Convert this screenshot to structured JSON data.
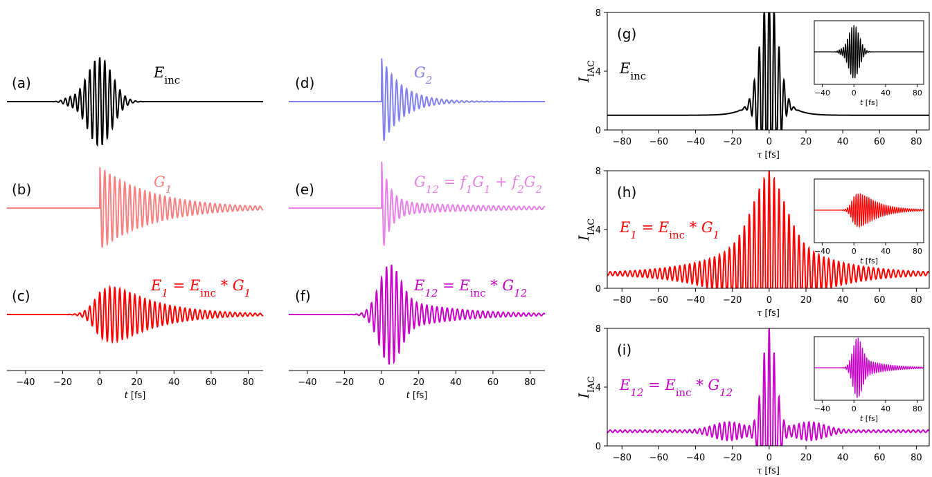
{
  "colors": {
    "black": "#000000",
    "salmon": "#f88080",
    "blue": "#8080f0",
    "violet": "#e880e8",
    "red": "#ff0000",
    "magenta": "#c800c8"
  },
  "chart_data": [
    {
      "type": "line",
      "group": "left",
      "xlabel": "t [fs]",
      "xticks": [
        -40,
        -20,
        0,
        20,
        40,
        60,
        80
      ],
      "xlim": [
        -50,
        88
      ],
      "y_axis_shown": false,
      "panels": [
        {
          "id": "a",
          "label": "(a)",
          "eq": "E_inc",
          "color": "#000000",
          "kind": "Einc"
        },
        {
          "id": "b",
          "label": "(b)",
          "eq": "G_1",
          "color": "#f88080",
          "kind": "G1"
        },
        {
          "id": "c",
          "label": "(c)",
          "eq": "E_1 = E_inc * G_1",
          "color": "#ff0000",
          "kind": "E1"
        }
      ]
    },
    {
      "type": "line",
      "group": "middle",
      "xlabel": "t [fs]",
      "xticks": [
        -40,
        -20,
        0,
        20,
        40,
        60,
        80
      ],
      "xlim": [
        -50,
        88
      ],
      "y_axis_shown": false,
      "panels": [
        {
          "id": "d",
          "label": "(d)",
          "eq": "G_2",
          "color": "#8080f0",
          "kind": "G2"
        },
        {
          "id": "e",
          "label": "(e)",
          "eq": "G_12 = f_1 G_1 + f_2 G_2",
          "color": "#e880e8",
          "kind": "G12"
        },
        {
          "id": "f",
          "label": "(f)",
          "eq": "E_12 = E_inc * G_12",
          "color": "#c800c8",
          "kind": "E12"
        }
      ]
    },
    {
      "type": "line",
      "id": "g",
      "label": "(g)",
      "eq": "E_inc",
      "color": "#000000",
      "kind": "IEinc",
      "ylabel": "I_IAC",
      "xlabel": "τ [fs]",
      "ylim": [
        0,
        8
      ],
      "yticks": [
        0,
        4,
        8
      ],
      "xlim": [
        -88,
        87
      ],
      "xticks": [
        -80,
        -60,
        -40,
        -20,
        0,
        20,
        40,
        60,
        80
      ],
      "inset": {
        "kind": "Einc",
        "xlabel": "t [fs]",
        "xticks": [
          -40,
          0,
          40,
          80
        ],
        "xlim": [
          -50,
          88
        ]
      }
    },
    {
      "type": "line",
      "id": "h",
      "label": "(h)",
      "eq": "E_1 = E_inc * G_1",
      "color": "#ff0000",
      "kind": "IE1",
      "ylabel": "I_IAC",
      "xlabel": "τ [fs]",
      "ylim": [
        0,
        8
      ],
      "yticks": [
        0,
        4,
        8
      ],
      "xlim": [
        -88,
        87
      ],
      "xticks": [
        -80,
        -60,
        -40,
        -20,
        0,
        20,
        40,
        60,
        80
      ],
      "inset": {
        "kind": "E1",
        "xlabel": "t [fs]",
        "xticks": [
          -40,
          0,
          40,
          80
        ],
        "xlim": [
          -50,
          88
        ]
      }
    },
    {
      "type": "line",
      "id": "i",
      "label": "(i)",
      "eq": "E_12 = E_inc * G_12",
      "color": "#c800c8",
      "kind": "IE12",
      "ylabel": "I_IAC",
      "xlabel": "τ [fs]",
      "ylim": [
        0,
        8
      ],
      "yticks": [
        0,
        4,
        8
      ],
      "xlim": [
        -88,
        87
      ],
      "xticks": [
        -80,
        -60,
        -40,
        -20,
        0,
        20,
        40,
        60,
        80
      ],
      "inset": {
        "kind": "E12",
        "xlabel": "t [fs]",
        "xticks": [
          -40,
          0,
          40,
          80
        ],
        "xlim": [
          -50,
          88
        ]
      }
    }
  ]
}
